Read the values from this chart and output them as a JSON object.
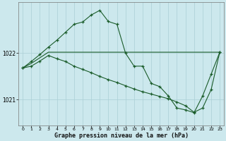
{
  "title": "Graphe pression niveau de la mer (hPa)",
  "background_color": "#cce8ed",
  "grid_color": "#aacfd6",
  "line_color": "#1a5c2a",
  "x_ticks": [
    0,
    1,
    2,
    3,
    4,
    5,
    6,
    7,
    8,
    9,
    10,
    11,
    12,
    13,
    14,
    15,
    16,
    17,
    18,
    19,
    20,
    21,
    22,
    23
  ],
  "y_ticks": [
    1021,
    1022
  ],
  "ylim": [
    1020.45,
    1023.1
  ],
  "line1_x": [
    0,
    1,
    2,
    3,
    4,
    5,
    6,
    7,
    8,
    9,
    10,
    11,
    12,
    13,
    14,
    15,
    16,
    17,
    18,
    19,
    20,
    21,
    22,
    23
  ],
  "line1_y": [
    1021.68,
    1021.82,
    1021.97,
    1022.13,
    1022.28,
    1022.45,
    1022.62,
    1022.67,
    1022.82,
    1022.92,
    1022.68,
    1022.62,
    1022.0,
    1021.72,
    1021.72,
    1021.35,
    1021.28,
    1021.08,
    1020.82,
    1020.78,
    1020.72,
    1021.08,
    1021.55,
    1022.02
  ],
  "line2_x": [
    0,
    1,
    2,
    3,
    4,
    5,
    6,
    7,
    8,
    9,
    10,
    11,
    12,
    13,
    14,
    15,
    16,
    17,
    18,
    19,
    20,
    21,
    22,
    23
  ],
  "line2_y": [
    1021.68,
    1021.78,
    1021.9,
    1022.02,
    1022.02,
    1022.02,
    1022.02,
    1022.02,
    1022.02,
    1022.02,
    1022.02,
    1022.02,
    1022.02,
    1022.02,
    1022.02,
    1022.02,
    1022.02,
    1022.02,
    1022.02,
    1022.02,
    1022.02,
    1022.02,
    1022.02,
    1022.02
  ],
  "line3_x": [
    0,
    1,
    2,
    3,
    4,
    5,
    6,
    7,
    8,
    9,
    10,
    11,
    12,
    13,
    14,
    15,
    16,
    17,
    18,
    19,
    20,
    21,
    22,
    23
  ],
  "line3_y": [
    1021.68,
    1021.72,
    1021.83,
    1021.95,
    1021.88,
    1021.82,
    1021.72,
    1021.65,
    1021.58,
    1021.5,
    1021.43,
    1021.37,
    1021.3,
    1021.23,
    1021.17,
    1021.12,
    1021.07,
    1021.02,
    1020.95,
    1020.87,
    1020.73,
    1020.82,
    1021.22,
    1022.02
  ]
}
